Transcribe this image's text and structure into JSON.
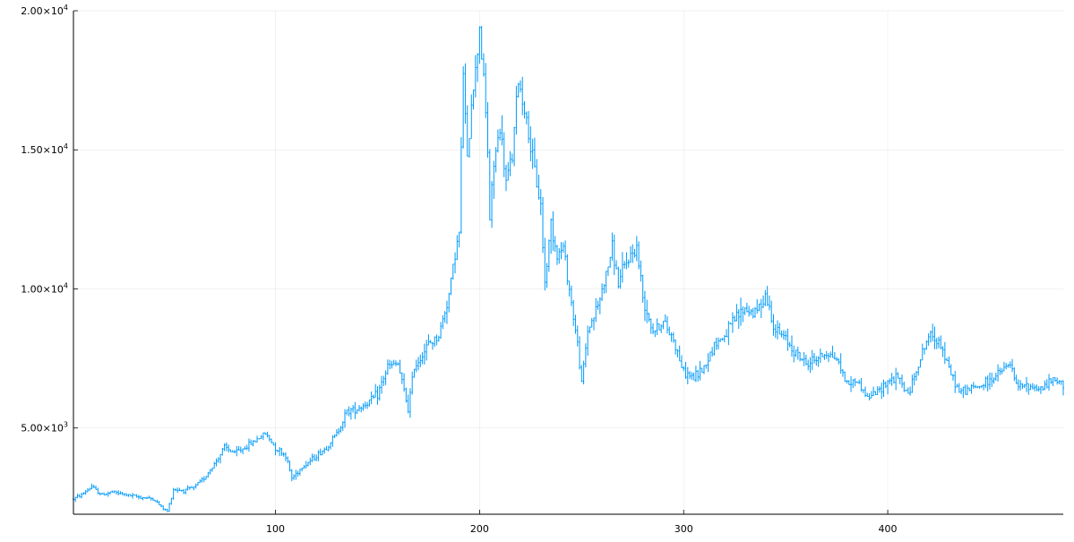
{
  "chart_data": {
    "type": "line",
    "style": "ohlc-bars",
    "title": "",
    "xlabel": "",
    "ylabel": "",
    "xlim": [
      1,
      486
    ],
    "ylim": [
      1900,
      20000
    ],
    "grid": true,
    "legend": "none",
    "xticks": [
      {
        "value": 100,
        "label": "100"
      },
      {
        "value": 200,
        "label": "200"
      },
      {
        "value": 300,
        "label": "300"
      },
      {
        "value": 400,
        "label": "400"
      }
    ],
    "yticks": [
      {
        "value": 5000,
        "mantissa": "5.00×10",
        "exponent": "3"
      },
      {
        "value": 10000,
        "mantissa": "1.00×10",
        "exponent": "4"
      },
      {
        "value": 15000,
        "mantissa": "1.50×10",
        "exponent": "4"
      },
      {
        "value": 20000,
        "mantissa": "2.00×10",
        "exponent": "4"
      }
    ],
    "series_color": "#009af9",
    "close_trace": [
      [
        1,
        2450
      ],
      [
        5,
        2600
      ],
      [
        10,
        2900
      ],
      [
        12,
        2750
      ],
      [
        15,
        2600
      ],
      [
        20,
        2700
      ],
      [
        30,
        2550
      ],
      [
        40,
        2450
      ],
      [
        45,
        2100
      ],
      [
        47,
        2000
      ],
      [
        50,
        2800
      ],
      [
        55,
        2750
      ],
      [
        60,
        2850
      ],
      [
        65,
        3200
      ],
      [
        70,
        3700
      ],
      [
        75,
        4300
      ],
      [
        80,
        4100
      ],
      [
        85,
        4300
      ],
      [
        95,
        4800
      ],
      [
        100,
        4300
      ],
      [
        105,
        4000
      ],
      [
        108,
        3200
      ],
      [
        113,
        3600
      ],
      [
        120,
        4000
      ],
      [
        125,
        4300
      ],
      [
        130,
        4800
      ],
      [
        135,
        5600
      ],
      [
        140,
        5700
      ],
      [
        145,
        5900
      ],
      [
        150,
        6200
      ],
      [
        155,
        7200
      ],
      [
        160,
        7300
      ],
      [
        163,
        6300
      ],
      [
        165,
        5700
      ],
      [
        168,
        7200
      ],
      [
        175,
        8000
      ],
      [
        180,
        8300
      ],
      [
        185,
        9800
      ],
      [
        188,
        11300
      ],
      [
        190,
        12000
      ],
      [
        192,
        17800
      ],
      [
        194,
        14500
      ],
      [
        196,
        16800
      ],
      [
        198,
        17800
      ],
      [
        200,
        19500
      ],
      [
        202,
        17500
      ],
      [
        204,
        15000
      ],
      [
        205,
        12500
      ],
      [
        207,
        14500
      ],
      [
        210,
        15800
      ],
      [
        213,
        13800
      ],
      [
        216,
        14800
      ],
      [
        219,
        17500
      ],
      [
        222,
        16500
      ],
      [
        226,
        14600
      ],
      [
        230,
        13000
      ],
      [
        232,
        10200
      ],
      [
        235,
        12400
      ],
      [
        238,
        11200
      ],
      [
        241,
        11500
      ],
      [
        245,
        9500
      ],
      [
        248,
        8000
      ],
      [
        250,
        6600
      ],
      [
        253,
        8500
      ],
      [
        258,
        9400
      ],
      [
        262,
        10500
      ],
      [
        265,
        11500
      ],
      [
        268,
        10200
      ],
      [
        271,
        10800
      ],
      [
        274,
        11200
      ],
      [
        277,
        11500
      ],
      [
        280,
        9700
      ],
      [
        285,
        8500
      ],
      [
        290,
        8800
      ],
      [
        295,
        8200
      ],
      [
        300,
        7000
      ],
      [
        305,
        6800
      ],
      [
        310,
        7200
      ],
      [
        315,
        8000
      ],
      [
        320,
        8300
      ],
      [
        325,
        8900
      ],
      [
        330,
        9300
      ],
      [
        335,
        9100
      ],
      [
        340,
        9800
      ],
      [
        345,
        8500
      ],
      [
        350,
        8200
      ],
      [
        355,
        7700
      ],
      [
        360,
        7300
      ],
      [
        365,
        7500
      ],
      [
        370,
        7700
      ],
      [
        375,
        7500
      ],
      [
        380,
        6600
      ],
      [
        385,
        6700
      ],
      [
        390,
        6100
      ],
      [
        395,
        6300
      ],
      [
        400,
        6700
      ],
      [
        405,
        6800
      ],
      [
        410,
        6200
      ],
      [
        415,
        7300
      ],
      [
        420,
        8300
      ],
      [
        425,
        8200
      ],
      [
        430,
        7100
      ],
      [
        435,
        6300
      ],
      [
        440,
        6400
      ],
      [
        445,
        6500
      ],
      [
        450,
        6700
      ],
      [
        455,
        7000
      ],
      [
        460,
        7300
      ],
      [
        463,
        6500
      ],
      [
        470,
        6500
      ],
      [
        475,
        6400
      ],
      [
        480,
        6700
      ],
      [
        486,
        6600
      ]
    ]
  }
}
